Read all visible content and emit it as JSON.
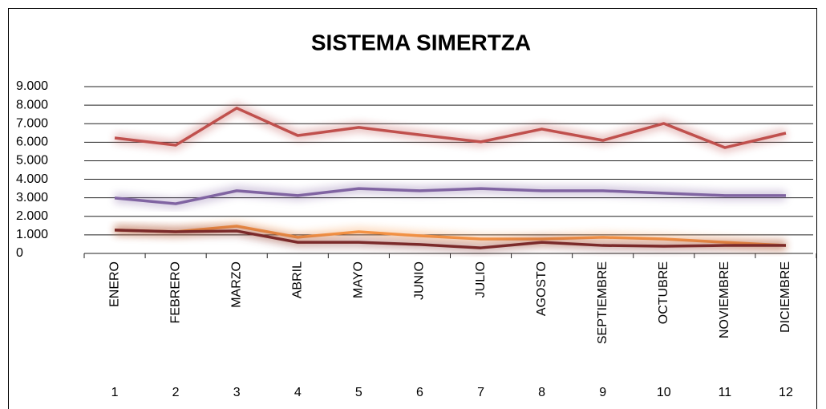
{
  "chart_data": {
    "type": "line",
    "title": "SISTEMA   SIMERTZA",
    "categories": [
      "ENERO",
      "FEBRERO",
      "MARZO",
      "ABRIL",
      "MAYO",
      "JUNIO",
      "JULIO",
      "AGOSTO",
      "SEPTIEMBRE",
      "OCTUBRE",
      "NOVIEMBRE",
      "DICIEMBRE"
    ],
    "category_numbers": [
      1,
      2,
      3,
      4,
      5,
      6,
      7,
      8,
      9,
      10,
      11,
      12
    ],
    "series": [
      {
        "color": "#c0504d",
        "values": [
          6230,
          5840,
          7840,
          6360,
          6800,
          6400,
          6020,
          6710,
          6100,
          7010,
          5710,
          6490
        ]
      },
      {
        "color": "#8064a2",
        "values": [
          2990,
          2680,
          3380,
          3120,
          3500,
          3380,
          3500,
          3380,
          3380,
          3250,
          3120,
          3120
        ]
      },
      {
        "color": "#f79646",
        "values": [
          1260,
          1170,
          1470,
          870,
          1170,
          950,
          780,
          780,
          870,
          780,
          600,
          430
        ]
      },
      {
        "color": "#7b2a2a",
        "values": [
          1260,
          1170,
          1210,
          600,
          600,
          480,
          300,
          600,
          430,
          390,
          430,
          430
        ]
      }
    ],
    "ylim": [
      0,
      9000
    ],
    "yticks": [
      0,
      {
        "value": 1000,
        "label": "1.000"
      },
      {
        "value": 2000,
        "label": "2.000"
      },
      {
        "value": 3000,
        "label": "3.000"
      },
      {
        "value": 4000,
        "label": "4.000"
      },
      {
        "value": 5000,
        "label": "5.000"
      },
      {
        "value": 6000,
        "label": "6.000"
      },
      {
        "value": 7000,
        "label": "7.000"
      },
      {
        "value": 8000,
        "label": "8.000"
      },
      {
        "value": 9000,
        "label": "9.000"
      }
    ],
    "grid": true,
    "glow": true
  }
}
